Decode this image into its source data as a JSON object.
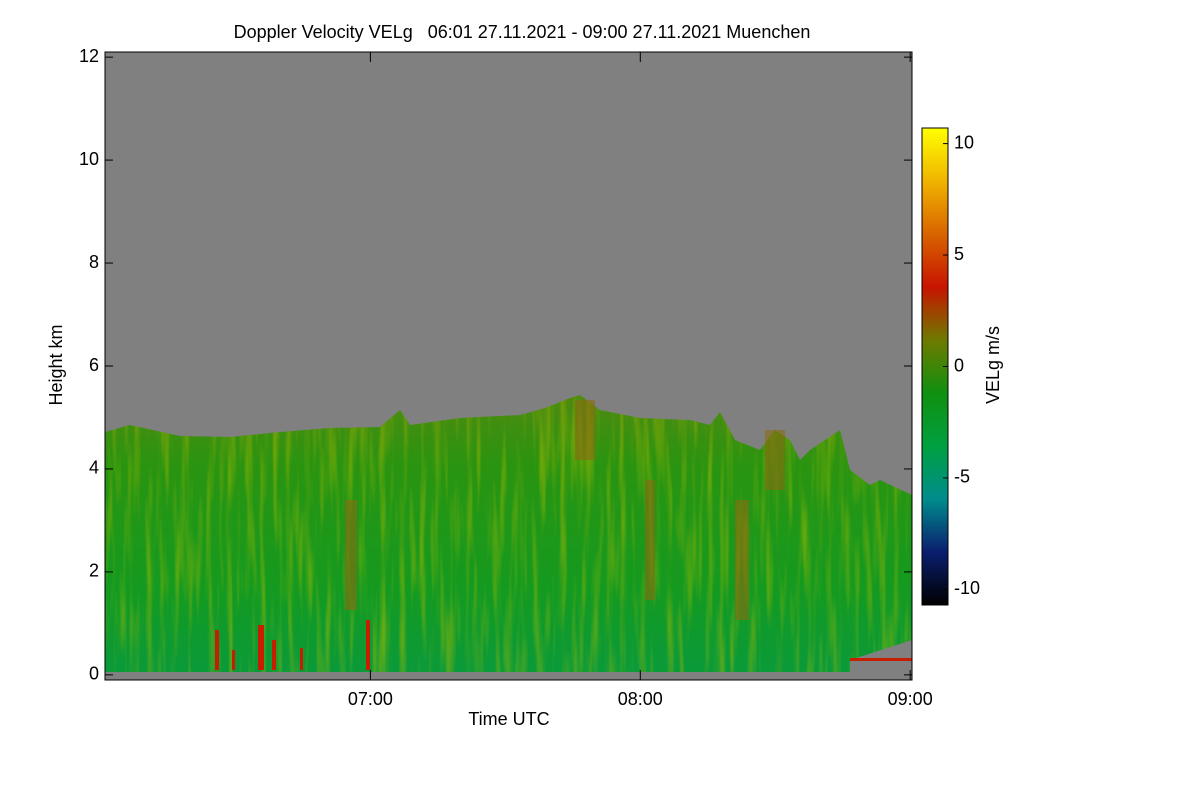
{
  "chart_data": {
    "type": "heatmap",
    "title": "Doppler Velocity VELg   06:01 27.11.2021 - 09:00 27.11.2021 Muenchen",
    "x_label": "Time UTC",
    "y_label": "Height km",
    "colorbar_label": "VELg m/s",
    "xlim": [
      6.0167,
      9.0067
    ],
    "xticks": [
      {
        "value": 7,
        "label": "07:00"
      },
      {
        "value": 8,
        "label": "08:00"
      },
      {
        "value": 9,
        "label": "09:00"
      }
    ],
    "ylim": [
      -0.1,
      12.1
    ],
    "yticks": [
      0,
      2,
      4,
      6,
      8,
      10,
      12
    ],
    "clim": [
      -10.7,
      10.7
    ],
    "cticks": [
      -10,
      -5,
      0,
      5,
      10
    ],
    "colorscale": [
      "#000000",
      "#0a1e6e",
      "#008c8c",
      "#00a040",
      "#109010",
      "#6e7a00",
      "#c81400",
      "#d86400",
      "#f0b400",
      "#ffff00"
    ],
    "background": "#808080"
  }
}
